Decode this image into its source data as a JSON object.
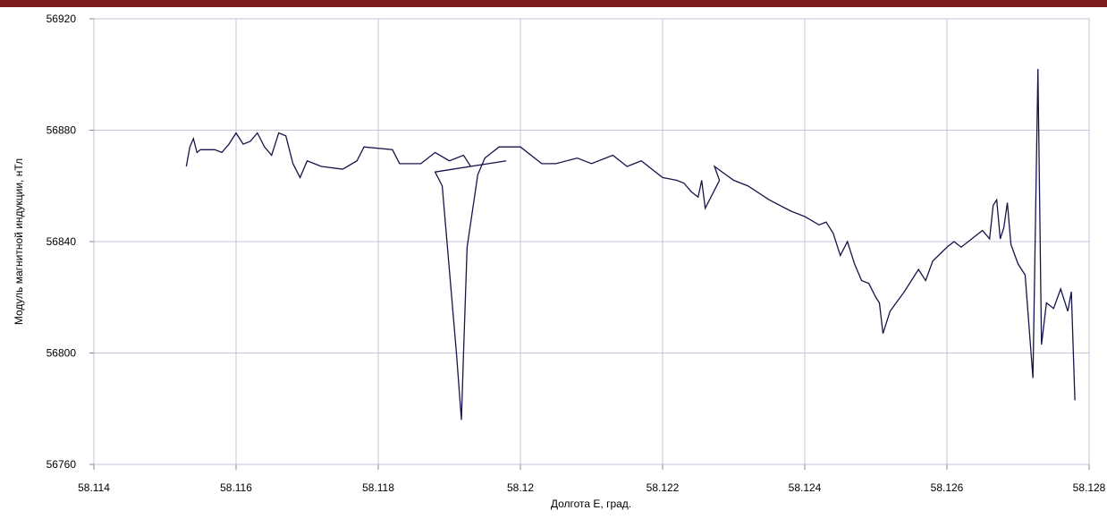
{
  "chart_data": {
    "type": "line",
    "x_label": "Долгота Е, град.",
    "y_label": "Модуль магнитной индукции, нТл",
    "color": "#15154a",
    "grid": true,
    "xlim": [
      58.114,
      58.128
    ],
    "xticks": [
      58.114,
      58.116,
      58.118,
      58.12,
      58.122,
      58.124,
      58.126,
      58.128
    ],
    "ylim": [
      56760,
      56920
    ],
    "yticks": [
      56760,
      56800,
      56840,
      56880,
      56920
    ],
    "x": [
      58.1153,
      58.11535,
      58.1154,
      58.11545,
      58.1155,
      58.1157,
      58.1158,
      58.1159,
      58.116,
      58.1161,
      58.1162,
      58.1163,
      58.1164,
      58.1165,
      58.1166,
      58.1167,
      58.1168,
      58.1169,
      58.117,
      58.1172,
      58.1175,
      58.1177,
      58.1178,
      58.1182,
      58.1183,
      58.1186,
      58.1188,
      58.119,
      58.1192,
      58.1193,
      58.1198,
      58.1188,
      58.1189,
      58.1191,
      58.11917,
      58.1192,
      58.11925,
      58.1194,
      58.1195,
      58.1197,
      58.12,
      58.1203,
      58.1205,
      58.1208,
      58.121,
      58.1213,
      58.1215,
      58.1217,
      58.122,
      58.1222,
      58.1223,
      58.1224,
      58.1225,
      58.12255,
      58.1226,
      58.1228,
      58.12273,
      58.123,
      58.1232,
      58.1235,
      58.1238,
      58.124,
      58.1242,
      58.1243,
      58.1244,
      58.1245,
      58.1246,
      58.1247,
      58.1248,
      58.1249,
      58.125,
      58.12505,
      58.1251,
      58.1252,
      58.1254,
      58.1256,
      58.1257,
      58.1258,
      58.126,
      58.1261,
      58.1262,
      58.1264,
      58.1265,
      58.1266,
      58.12665,
      58.1267,
      58.12675,
      58.1268,
      58.12685,
      58.1269,
      58.127,
      58.1271,
      58.12721,
      58.12728,
      58.12733,
      58.1274,
      58.1275,
      58.1276,
      58.1277,
      58.12775,
      58.1278
    ],
    "values": [
      56867,
      56874,
      56877,
      56872,
      56873,
      56873,
      56872,
      56875,
      56879,
      56875,
      56876,
      56879,
      56874,
      56871,
      56879,
      56878,
      56868,
      56863,
      56869,
      56867,
      56866,
      56869,
      56874,
      56873,
      56868,
      56868,
      56872,
      56869,
      56871,
      56867,
      56869,
      56865,
      56860,
      56800,
      56776,
      56800,
      56838,
      56864,
      56870,
      56874,
      56874,
      56868,
      56868,
      56870,
      56868,
      56871,
      56867,
      56869,
      56863,
      56862,
      56861,
      56858,
      56856,
      56862,
      56852,
      56862,
      56867,
      56862,
      56860,
      56855,
      56851,
      56849,
      56846,
      56847,
      56843,
      56835,
      56840,
      56832,
      56826,
      56825,
      56820,
      56818,
      56807,
      56815,
      56822,
      56830,
      56826,
      56833,
      56838,
      56840,
      56838,
      56842,
      56844,
      56841,
      56853,
      56855,
      56841,
      56845,
      56854,
      56839,
      56832,
      56828,
      56791,
      56902,
      56803,
      56818,
      56816,
      56823,
      56815,
      56822,
      56783
    ]
  }
}
